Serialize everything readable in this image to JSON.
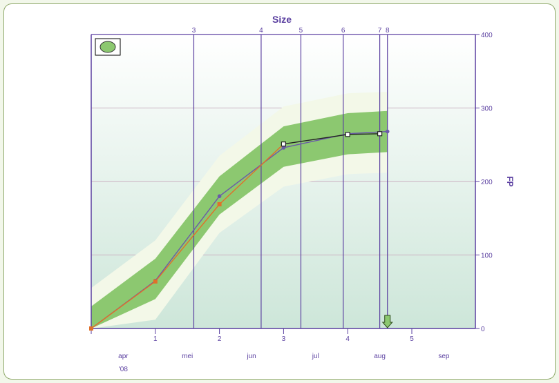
{
  "chart_data": {
    "type": "line",
    "title": "Size",
    "ylabel": "FP",
    "y_axis_side": "right",
    "ylim": [
      0,
      400
    ],
    "yticks": [
      0,
      100,
      200,
      300,
      400
    ],
    "x_range": [
      0,
      6
    ],
    "bottom_ticks": [
      "1",
      "2",
      "3",
      "4",
      "5"
    ],
    "month_labels": [
      "apr",
      "mei",
      "jun",
      "jul",
      "aug",
      "sep"
    ],
    "year_label": "'08",
    "top_ticks": [
      {
        "label": "3",
        "x": 1.6
      },
      {
        "label": "4",
        "x": 2.65
      },
      {
        "label": "5",
        "x": 3.27
      },
      {
        "label": "6",
        "x": 3.93
      },
      {
        "label": "7",
        "x": 4.5
      },
      {
        "label": "8",
        "x": 4.62
      }
    ],
    "grid": true,
    "legend": {
      "position": "top-left",
      "swatch_color": "#8cc870"
    },
    "bands": {
      "x": [
        0,
        1,
        2,
        3,
        4,
        4.62
      ],
      "outer_upper": [
        55,
        120,
        235,
        302,
        320,
        322
      ],
      "inner_upper": [
        30,
        95,
        207,
        275,
        293,
        296
      ],
      "inner_lower": [
        0,
        40,
        155,
        220,
        237,
        240
      ],
      "outer_lower": [
        0,
        12,
        130,
        193,
        210,
        212
      ]
    },
    "series": [
      {
        "color": "#6a5aa8",
        "marker": "circle",
        "x": [
          0,
          1,
          2,
          3,
          4,
          4.62
        ],
        "values": [
          0,
          65,
          180,
          246,
          265,
          268
        ]
      },
      {
        "color": "#e0702a",
        "marker": "square",
        "x": [
          0,
          1,
          2,
          3
        ],
        "values": [
          0,
          64,
          169,
          251
        ]
      },
      {
        "color": "#222222",
        "marker": "open-square",
        "x": [
          3,
          4,
          4.5
        ],
        "values": [
          251,
          264,
          265
        ]
      }
    ],
    "marker": {
      "type": "down-arrow",
      "x": 4.62,
      "color": "#8cc870"
    }
  },
  "colors": {
    "axis": "#5a3fa0",
    "grid": "#c9b0c0",
    "outer_band": "#f3f8e8",
    "inner_band": "#8cc870"
  }
}
